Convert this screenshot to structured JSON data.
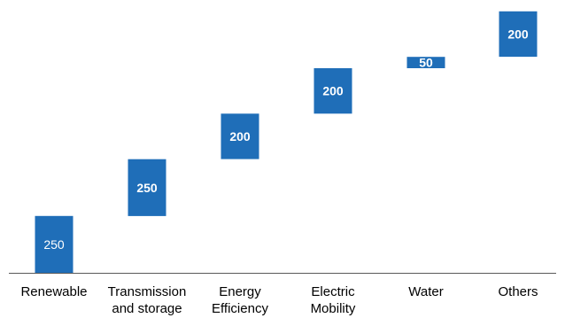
{
  "chart_data": {
    "type": "bar",
    "subtype": "waterfall",
    "categories": [
      [
        "Renewable"
      ],
      [
        "Transmission",
        "and storage"
      ],
      [
        "Energy",
        "Efficiency"
      ],
      [
        "Electric",
        "Mobility"
      ],
      [
        "Water"
      ],
      [
        "Others"
      ]
    ],
    "values": [
      250,
      250,
      200,
      200,
      50,
      200
    ],
    "value_labels": [
      "250",
      "250",
      "200",
      "200",
      "50",
      "200"
    ],
    "bold_labels": [
      false,
      true,
      true,
      true,
      true,
      true
    ],
    "ylim": [
      0,
      1200
    ],
    "grid": false,
    "legend": "none",
    "title": "",
    "xlabel": "",
    "ylabel": ""
  },
  "colors": {
    "bar": "#1f6eb8",
    "axis": "#595959",
    "label": "#ffffff",
    "tick_text": "#000000"
  }
}
